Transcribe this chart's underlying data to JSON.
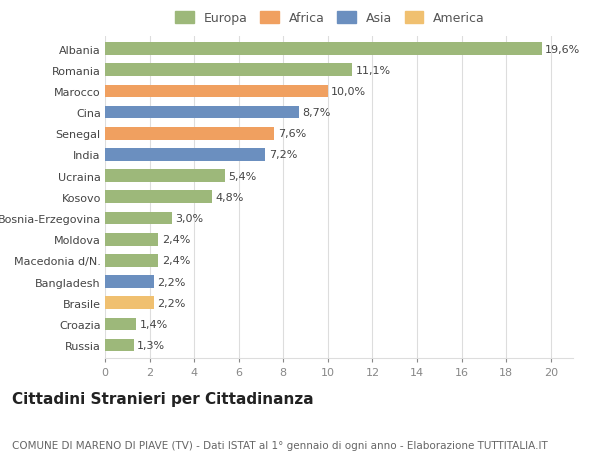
{
  "categories": [
    "Russia",
    "Croazia",
    "Brasile",
    "Bangladesh",
    "Macedonia d/N.",
    "Moldova",
    "Bosnia-Erzegovina",
    "Kosovo",
    "Ucraina",
    "India",
    "Senegal",
    "Cina",
    "Marocco",
    "Romania",
    "Albania"
  ],
  "values": [
    1.3,
    1.4,
    2.2,
    2.2,
    2.4,
    2.4,
    3.0,
    4.8,
    5.4,
    7.2,
    7.6,
    8.7,
    10.0,
    11.1,
    19.6
  ],
  "labels": [
    "1,3%",
    "1,4%",
    "2,2%",
    "2,2%",
    "2,4%",
    "2,4%",
    "3,0%",
    "4,8%",
    "5,4%",
    "7,2%",
    "7,6%",
    "8,7%",
    "10,0%",
    "11,1%",
    "19,6%"
  ],
  "colors": [
    "#9db87a",
    "#9db87a",
    "#f0c070",
    "#6b8fbf",
    "#9db87a",
    "#9db87a",
    "#9db87a",
    "#9db87a",
    "#9db87a",
    "#6b8fbf",
    "#f0a060",
    "#6b8fbf",
    "#f0a060",
    "#9db87a",
    "#9db87a"
  ],
  "legend_labels": [
    "Europa",
    "Africa",
    "Asia",
    "America"
  ],
  "legend_colors": [
    "#9db87a",
    "#f0a060",
    "#6b8fbf",
    "#f0c070"
  ],
  "title": "Cittadini Stranieri per Cittadinanza",
  "subtitle": "COMUNE DI MARENO DI PIAVE (TV) - Dati ISTAT al 1° gennaio di ogni anno - Elaborazione TUTTITALIA.IT",
  "xlim": [
    0,
    21
  ],
  "xticks": [
    0,
    2,
    4,
    6,
    8,
    10,
    12,
    14,
    16,
    18,
    20
  ],
  "background_color": "#ffffff",
  "grid_color": "#dddddd",
  "bar_height": 0.6,
  "title_fontsize": 11,
  "subtitle_fontsize": 7.5,
  "label_fontsize": 8,
  "tick_fontsize": 8,
  "legend_fontsize": 9
}
